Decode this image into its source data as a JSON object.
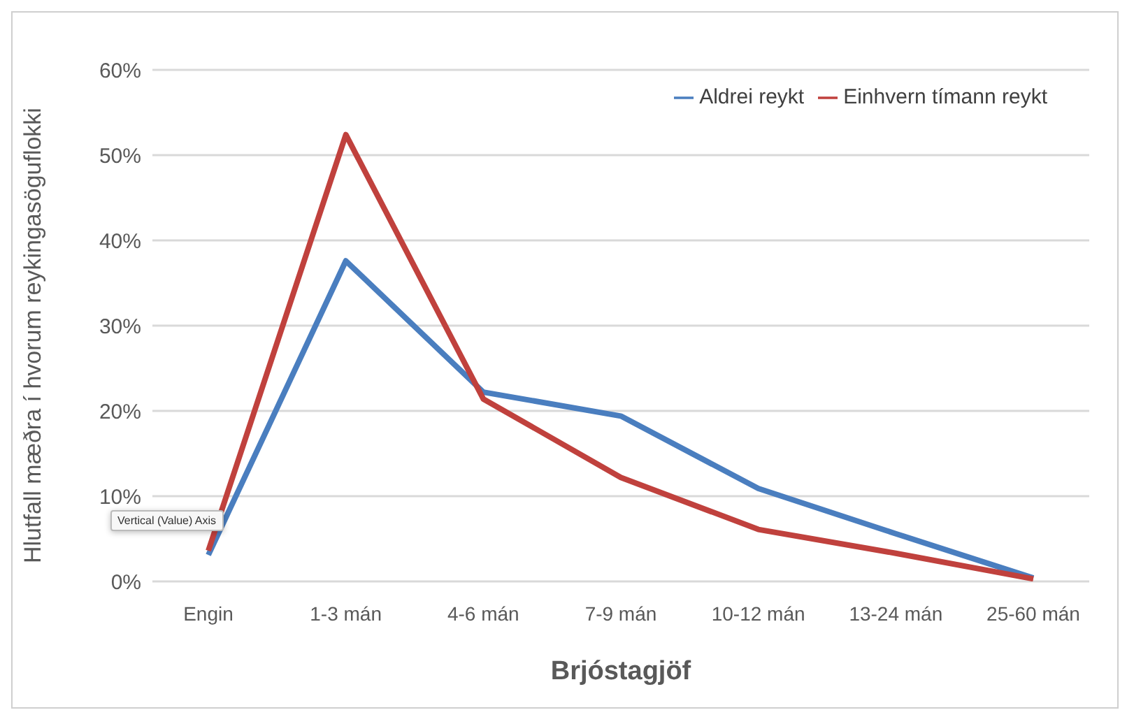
{
  "chart_data": {
    "type": "line",
    "xlabel": "Brjóstagjöf",
    "ylabel": "Hlutfall mæðra í hvorum reykingasöguflokki",
    "categories": [
      "Engin",
      "1-3 mán",
      "4-6 mán",
      "7-9 mán",
      "10-12 mán",
      "13-24 mán",
      "25-60 mán"
    ],
    "series": [
      {
        "name": "Aldrei reykt",
        "color": "#4a7ebf",
        "values": [
          3.1,
          37.6,
          22.2,
          19.4,
          10.9,
          5.6,
          0.4
        ]
      },
      {
        "name": "Einhvern tímann reykt",
        "color": "#c0413d",
        "values": [
          3.6,
          52.4,
          21.4,
          12.2,
          6.1,
          3.3,
          0.3
        ]
      }
    ],
    "ylim": [
      0,
      60
    ],
    "yticks": [
      {
        "value": 0,
        "label": "0%"
      },
      {
        "value": 10,
        "label": "10%"
      },
      {
        "value": 20,
        "label": "20%"
      },
      {
        "value": 30,
        "label": "30%"
      },
      {
        "value": 40,
        "label": "40%"
      },
      {
        "value": 50,
        "label": "50%"
      },
      {
        "value": 60,
        "label": "60%"
      }
    ],
    "grid": "y",
    "legend": "top right",
    "marker": "none",
    "line_style": "solid",
    "annotations": [
      "Vertical (Value) Axis"
    ]
  }
}
